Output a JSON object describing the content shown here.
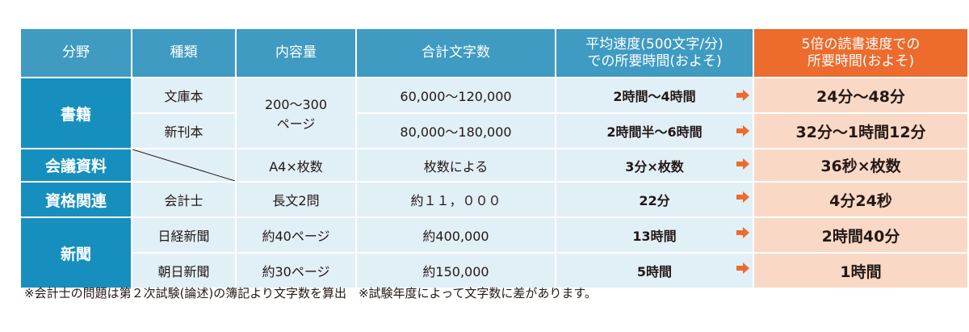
{
  "headers": {
    "field": "分野",
    "type": "種類",
    "volume": "内容量",
    "total_chars": "合計文字数",
    "avg_line1": "平均速度(500文字/分)",
    "avg_line2": "での所要時間(およそ)",
    "fast_line1": "5倍の読書速度での",
    "fast_line2": "所要時間(およそ)"
  },
  "categories": {
    "books": "書籍",
    "meeting": "会議資料",
    "qualification": "資格関連",
    "newspaper": "新聞"
  },
  "rows": [
    {
      "type": "文庫本",
      "total": "60,000～120,000",
      "avg_time": "2時間～4時間",
      "fast_time": "24分～48分"
    },
    {
      "type": "新刊本",
      "total": "80,000～180,000",
      "avg_time": "2時間半～6時間",
      "fast_time": "32分～1時間12分"
    },
    {
      "type": "",
      "volume": "A4×枚数",
      "total": "枚数による",
      "avg_time": "3分×枚数",
      "fast_time": "36秒×枚数"
    },
    {
      "type": "会計士",
      "volume": "長文2問",
      "total": "約１１，０００",
      "avg_time": "22分",
      "fast_time": "4分24秒"
    },
    {
      "type": "日経新聞",
      "volume": "約40ページ",
      "total": "約400,000",
      "avg_time": "13時間",
      "fast_time": "2時間40分"
    },
    {
      "type": "朝日新聞",
      "volume": "約30ページ",
      "total": "約150,000",
      "avg_time": "5時間",
      "fast_time": "1時間"
    }
  ],
  "books_volume": {
    "line1": "200～300",
    "line2": "ページ"
  },
  "footnote": "※会計士の問題は第２次試験(論述)の簿記より文字数を算出　※試験年度によって文字数に差があります。",
  "colors": {
    "header": "#3f9bc1",
    "category": "#178fbe",
    "body": "#e1eff7",
    "highlight_header": "#ec6b2d",
    "highlight_body": "#f9d9c6",
    "arrow": "#ec6b2d"
  }
}
